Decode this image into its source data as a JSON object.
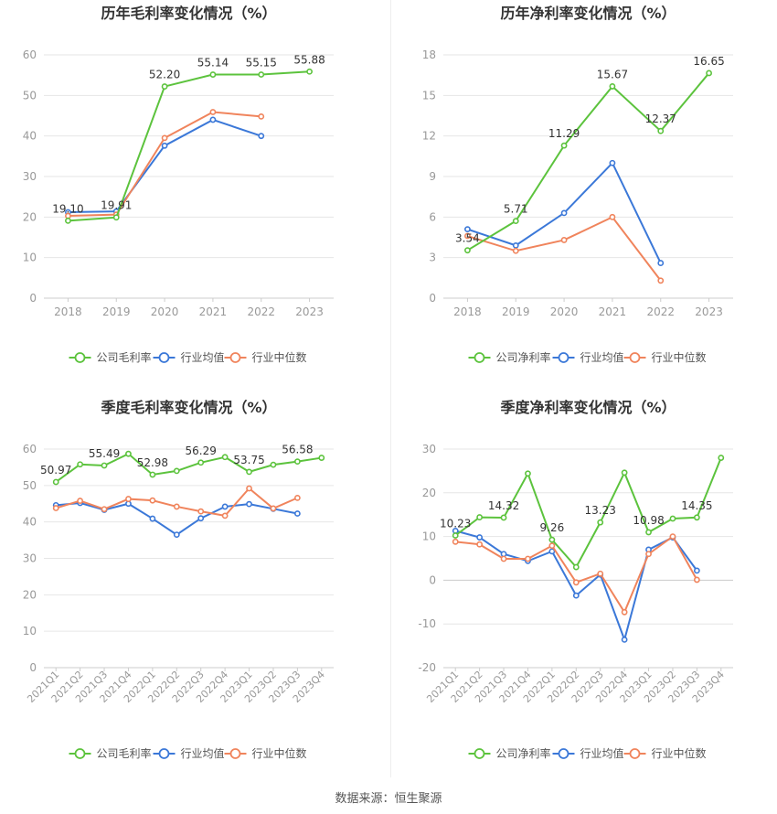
{
  "colors": {
    "company": "#5cc33d",
    "industry_avg": "#3b78d8",
    "industry_median": "#f0845c",
    "grid": "#e6e6e6",
    "axis_text": "#999999",
    "label_text": "#333333",
    "title_text": "#333333"
  },
  "footer": {
    "source": "数据来源：恒生聚源"
  },
  "chart_data": [
    {
      "type": "line",
      "title": "历年毛利率变化情况（%）",
      "categories": [
        "2018",
        "2019",
        "2020",
        "2021",
        "2022",
        "2023"
      ],
      "ylim": [
        0,
        60
      ],
      "yticks": [
        0,
        10,
        20,
        30,
        40,
        50,
        60
      ],
      "grid": true,
      "legend_position": "bottom",
      "series": [
        {
          "name": "公司毛利率",
          "color": "#5cc33d",
          "values": [
            19.1,
            19.91,
            52.2,
            55.14,
            55.15,
            55.88
          ],
          "labels": [
            "19.10",
            "19.91",
            "52.20",
            "55.14",
            "55.15",
            "55.88"
          ]
        },
        {
          "name": "行业均值",
          "color": "#3b78d8",
          "values": [
            21.2,
            21.4,
            37.6,
            44.0,
            40.0,
            null
          ]
        },
        {
          "name": "行业中位数",
          "color": "#f0845c",
          "values": [
            20.3,
            20.6,
            39.5,
            45.9,
            44.8,
            null
          ]
        }
      ]
    },
    {
      "type": "line",
      "title": "历年净利率变化情况（%）",
      "categories": [
        "2018",
        "2019",
        "2020",
        "2021",
        "2022",
        "2023"
      ],
      "ylim": [
        0,
        18
      ],
      "yticks": [
        0,
        3,
        6,
        9,
        12,
        15,
        18
      ],
      "grid": true,
      "legend_position": "bottom",
      "series": [
        {
          "name": "公司净利率",
          "color": "#5cc33d",
          "values": [
            3.54,
            5.71,
            11.29,
            15.67,
            12.37,
            16.65
          ],
          "labels": [
            "3.54",
            "5.71",
            "11.29",
            "15.67",
            "12.37",
            "16.65"
          ]
        },
        {
          "name": "行业均值",
          "color": "#3b78d8",
          "values": [
            5.1,
            3.9,
            6.3,
            10.0,
            2.6,
            null
          ]
        },
        {
          "name": "行业中位数",
          "color": "#f0845c",
          "values": [
            4.6,
            3.5,
            4.3,
            6.0,
            1.3,
            null
          ]
        }
      ]
    },
    {
      "type": "line",
      "title": "季度毛利率变化情况（%）",
      "categories": [
        "2021Q1",
        "2021Q2",
        "2021Q3",
        "2021Q4",
        "2022Q1",
        "2022Q2",
        "2022Q3",
        "2022Q4",
        "2023Q1",
        "2023Q2",
        "2023Q3",
        "2023Q4"
      ],
      "ylim": [
        0,
        60
      ],
      "yticks": [
        0,
        10,
        20,
        30,
        40,
        50,
        60
      ],
      "grid": true,
      "legend_position": "bottom",
      "series": [
        {
          "name": "公司毛利率",
          "color": "#5cc33d",
          "values": [
            50.97,
            55.8,
            55.49,
            58.7,
            52.98,
            54.0,
            56.29,
            57.8,
            53.75,
            55.7,
            56.58,
            57.6
          ],
          "labels": [
            "50.97",
            "",
            "55.49",
            "",
            "52.98",
            "",
            "56.29",
            "",
            "53.75",
            "",
            "56.58",
            ""
          ]
        },
        {
          "name": "行业均值",
          "color": "#3b78d8",
          "values": [
            44.6,
            45.2,
            43.3,
            45.0,
            40.9,
            36.5,
            41.0,
            44.2,
            44.9,
            43.6,
            42.3,
            null
          ]
        },
        {
          "name": "行业中位数",
          "color": "#f0845c",
          "values": [
            43.8,
            45.8,
            43.5,
            46.3,
            45.9,
            44.2,
            42.9,
            41.7,
            49.2,
            43.7,
            46.6,
            null
          ]
        }
      ]
    },
    {
      "type": "line",
      "title": "季度净利率变化情况（%）",
      "categories": [
        "2021Q1",
        "2021Q2",
        "2021Q3",
        "2021Q4",
        "2022Q1",
        "2022Q2",
        "2022Q3",
        "2022Q4",
        "2023Q1",
        "2023Q2",
        "2023Q3",
        "2023Q4"
      ],
      "ylim": [
        -20,
        30
      ],
      "yticks": [
        -20,
        -10,
        0,
        10,
        20,
        30
      ],
      "grid": true,
      "legend_position": "bottom",
      "series": [
        {
          "name": "公司净利率",
          "color": "#5cc33d",
          "values": [
            10.23,
            14.4,
            14.32,
            24.4,
            9.26,
            3.0,
            13.23,
            24.6,
            10.98,
            14.1,
            14.35,
            28.0
          ],
          "labels": [
            "10.23",
            "",
            "14.32",
            "",
            "9.26",
            "",
            "13.23",
            "",
            "10.98",
            "",
            "14.35",
            ""
          ]
        },
        {
          "name": "行业均值",
          "color": "#3b78d8",
          "values": [
            11.3,
            9.8,
            6.0,
            4.4,
            6.6,
            -3.5,
            1.3,
            -13.6,
            7.0,
            9.8,
            2.2,
            null
          ]
        },
        {
          "name": "行业中位数",
          "color": "#f0845c",
          "values": [
            8.8,
            8.2,
            4.9,
            4.9,
            7.9,
            -0.5,
            1.5,
            -7.3,
            6.0,
            10.0,
            0.1,
            null
          ]
        }
      ]
    }
  ]
}
